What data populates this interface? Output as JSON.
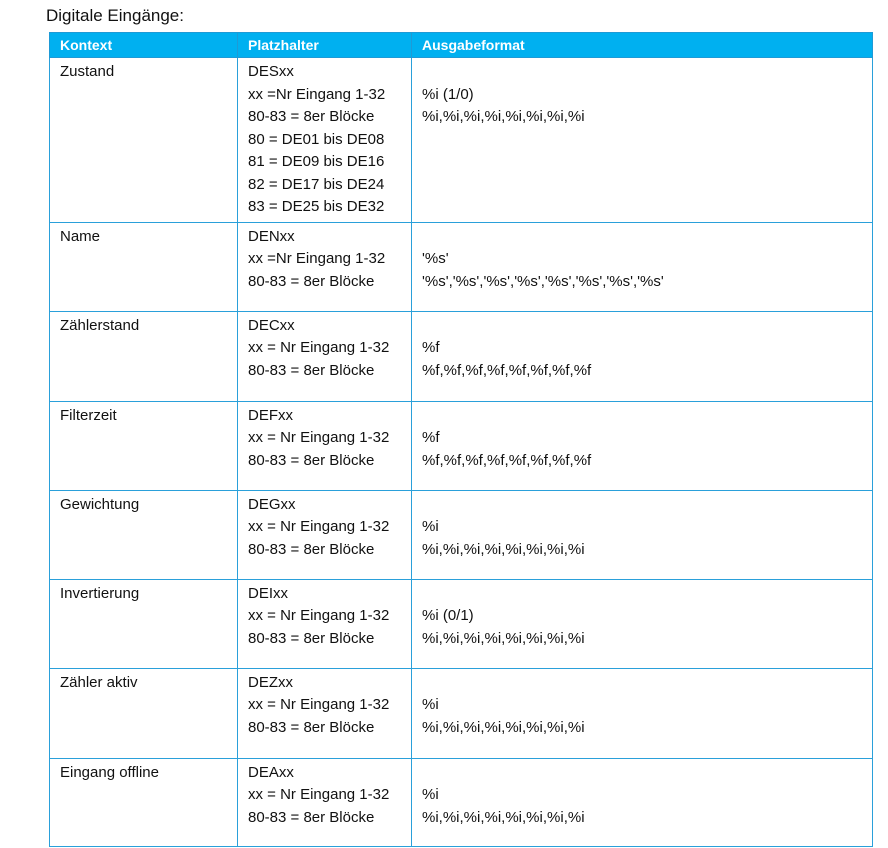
{
  "title": "Digitale Eingänge:",
  "headers": [
    "Kontext",
    "Platzhalter",
    "Ausgabeformat"
  ],
  "rows": [
    {
      "context": "Zustand",
      "placeholder": [
        "DESxx",
        "xx =Nr Eingang 1-32",
        "80-83 = 8er Blöcke",
        "80 = DE01 bis DE08",
        "81 = DE09 bis DE16",
        "82 = DE17 bis DE24",
        "83 = DE25 bis DE32"
      ],
      "output": [
        "%i (1/0)",
        "%i,%i,%i,%i,%i,%i,%i,%i"
      ]
    },
    {
      "context": "Name",
      "placeholder": [
        "DENxx",
        "xx =Nr Eingang 1-32",
        "80-83 = 8er Blöcke"
      ],
      "output": [
        "'%s'",
        "'%s','%s','%s','%s','%s','%s','%s','%s'"
      ]
    },
    {
      "context": "Zählerstand",
      "placeholder": [
        "DECxx",
        "xx = Nr Eingang 1-32",
        "80-83 = 8er Blöcke"
      ],
      "output": [
        "%f",
        "%f,%f,%f,%f,%f,%f,%f,%f"
      ]
    },
    {
      "context": "Filterzeit",
      "placeholder": [
        "DEFxx",
        "xx = Nr Eingang 1-32",
        "80-83 = 8er Blöcke"
      ],
      "output": [
        "%f",
        "%f,%f,%f,%f,%f,%f,%f,%f"
      ]
    },
    {
      "context": "Gewichtung",
      "placeholder": [
        "DEGxx",
        "xx = Nr Eingang 1-32",
        "80-83 = 8er Blöcke"
      ],
      "output": [
        "%i",
        "%i,%i,%i,%i,%i,%i,%i,%i"
      ]
    },
    {
      "context": "Invertierung",
      "placeholder": [
        "DEIxx",
        "xx = Nr Eingang 1-32",
        "80-83 = 8er Blöcke"
      ],
      "output": [
        "%i (0/1)",
        "%i,%i,%i,%i,%i,%i,%i,%i"
      ]
    },
    {
      "context": "Zähler aktiv",
      "placeholder": [
        "DEZxx",
        "xx = Nr Eingang 1-32",
        "80-83 = 8er Blöcke"
      ],
      "output": [
        "%i",
        "%i,%i,%i,%i,%i,%i,%i,%i"
      ]
    },
    {
      "context": "Eingang offline",
      "placeholder": [
        "DEAxx",
        "xx = Nr Eingang 1-32",
        "80-83 = 8er Blöcke"
      ],
      "output": [
        "%i",
        "%i,%i,%i,%i,%i,%i,%i,%i"
      ]
    }
  ]
}
